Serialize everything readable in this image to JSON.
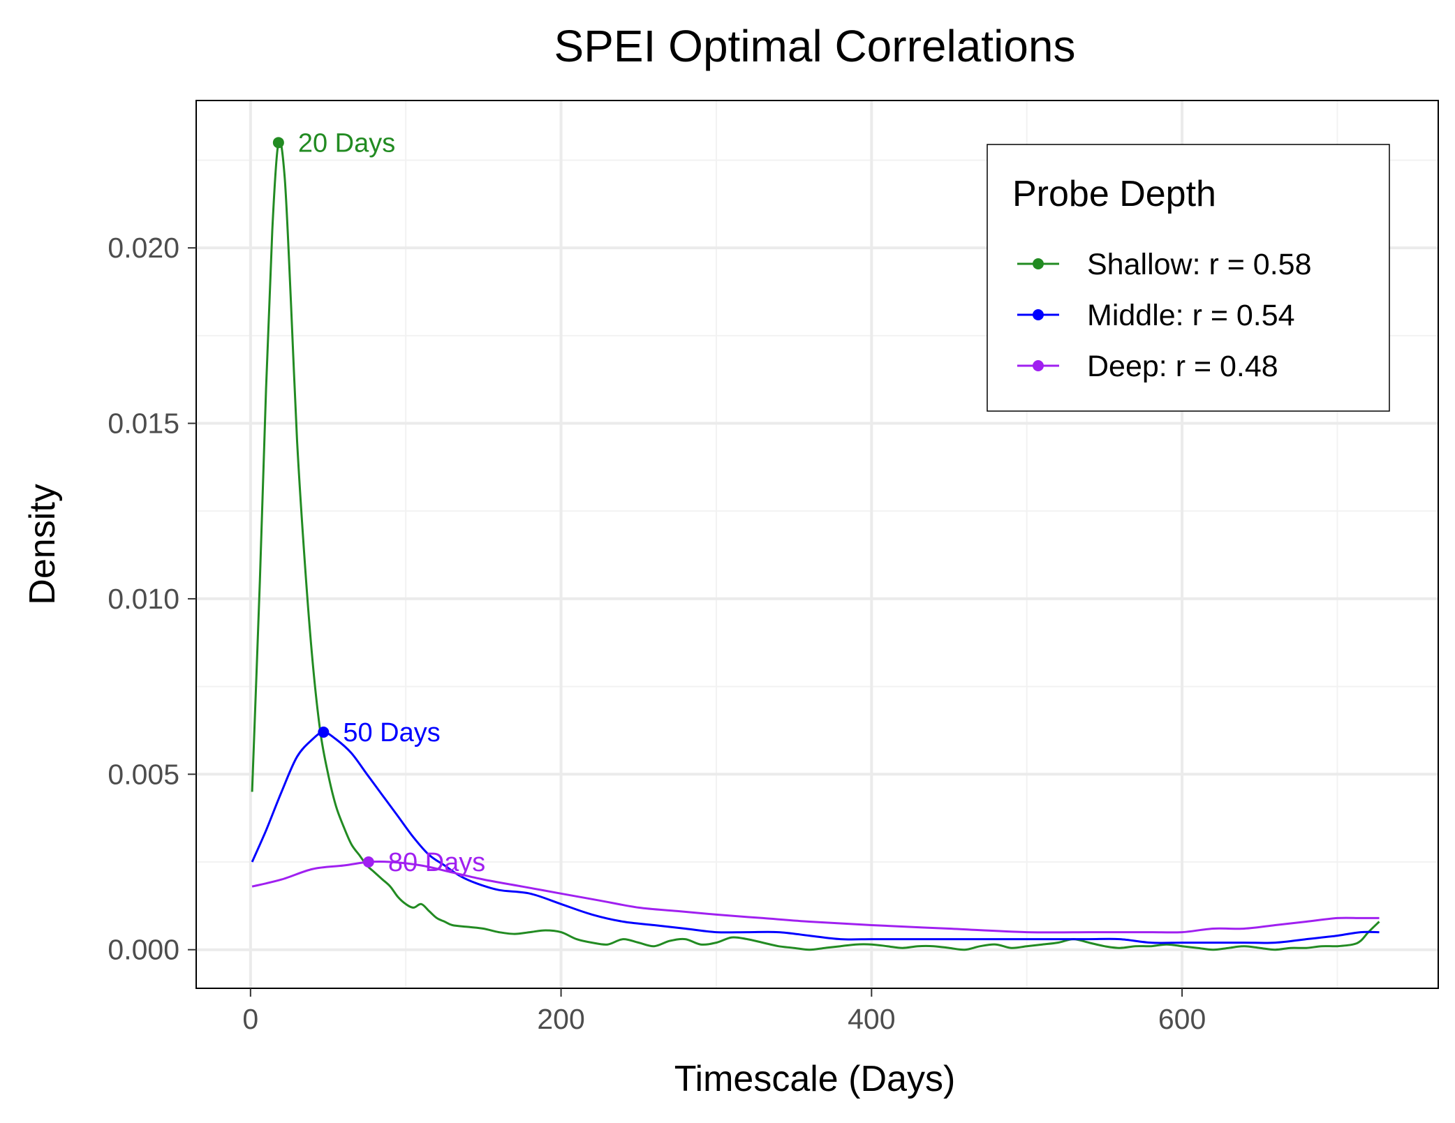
{
  "chart_data": {
    "type": "line",
    "title": "SPEI Optimal Correlations",
    "xlabel": "Timescale (Days)",
    "ylabel": "Density",
    "xlim": [
      -35,
      765
    ],
    "ylim": [
      -0.0011,
      0.0242
    ],
    "xticks": [
      0,
      200,
      400,
      600
    ],
    "xtick_labels": [
      "0",
      "200",
      "400",
      "600"
    ],
    "yticks": [
      0,
      0.005,
      0.01,
      0.015,
      0.02
    ],
    "ytick_labels": [
      "0.000",
      "0.005",
      "0.010",
      "0.015",
      "0.020"
    ],
    "grid": true,
    "legend": {
      "title": "Probe Depth",
      "position": "top-right"
    },
    "series": [
      {
        "name": "Shallow: r = 0.58",
        "color": "#228B22",
        "peak": {
          "x": 18,
          "y": 0.023,
          "label": "20 Days"
        },
        "x": [
          1,
          6,
          10,
          14,
          18,
          22,
          26,
          30,
          35,
          40,
          45,
          50,
          55,
          60,
          65,
          70,
          75,
          80,
          85,
          90,
          95,
          100,
          105,
          110,
          115,
          120,
          125,
          130,
          140,
          150,
          160,
          170,
          180,
          190,
          200,
          210,
          220,
          230,
          240,
          250,
          260,
          270,
          280,
          290,
          300,
          310,
          320,
          330,
          340,
          350,
          360,
          370,
          380,
          390,
          400,
          410,
          420,
          430,
          440,
          450,
          460,
          470,
          480,
          490,
          500,
          510,
          520,
          530,
          540,
          550,
          560,
          570,
          580,
          590,
          600,
          610,
          620,
          630,
          640,
          650,
          660,
          670,
          680,
          690,
          700,
          710,
          715,
          720,
          727
        ],
        "y": [
          0.0045,
          0.0105,
          0.016,
          0.0205,
          0.023,
          0.022,
          0.0185,
          0.0145,
          0.011,
          0.0082,
          0.0062,
          0.005,
          0.0041,
          0.0035,
          0.003,
          0.0027,
          0.0024,
          0.0022,
          0.002,
          0.0018,
          0.0015,
          0.0013,
          0.0012,
          0.0013,
          0.0011,
          0.0009,
          0.0008,
          0.0007,
          0.00065,
          0.0006,
          0.0005,
          0.00045,
          0.0005,
          0.00055,
          0.0005,
          0.0003,
          0.0002,
          0.00015,
          0.0003,
          0.0002,
          0.0001,
          0.00025,
          0.0003,
          0.00015,
          0.0002,
          0.00035,
          0.0003,
          0.0002,
          0.0001,
          5e-05,
          0.0,
          5e-05,
          0.0001,
          0.00015,
          0.00015,
          0.0001,
          5e-05,
          0.0001,
          0.0001,
          5e-05,
          0.0,
          0.0001,
          0.00015,
          5e-05,
          0.0001,
          0.00015,
          0.0002,
          0.0003,
          0.0002,
          0.0001,
          5e-05,
          0.0001,
          0.0001,
          0.00015,
          0.0001,
          5e-05,
          0.0,
          5e-05,
          0.0001,
          5e-05,
          0.0,
          5e-05,
          5e-05,
          0.0001,
          0.0001,
          0.00015,
          0.00025,
          0.0005,
          0.0008
        ]
      },
      {
        "name": "Middle: r = 0.54",
        "color": "#0000FF",
        "peak": {
          "x": 47,
          "y": 0.0062,
          "label": "50 Days"
        },
        "x": [
          1,
          10,
          20,
          30,
          40,
          47,
          55,
          65,
          75,
          85,
          95,
          105,
          115,
          125,
          135,
          145,
          160,
          180,
          200,
          220,
          240,
          260,
          280,
          300,
          320,
          340,
          360,
          380,
          400,
          420,
          440,
          460,
          480,
          500,
          520,
          540,
          560,
          580,
          600,
          620,
          640,
          660,
          680,
          700,
          715,
          727
        ],
        "y": [
          0.0025,
          0.0034,
          0.0045,
          0.0055,
          0.006,
          0.0062,
          0.006,
          0.0056,
          0.005,
          0.0044,
          0.0038,
          0.0032,
          0.0027,
          0.0024,
          0.0021,
          0.0019,
          0.0017,
          0.0016,
          0.0013,
          0.001,
          0.0008,
          0.0007,
          0.0006,
          0.0005,
          0.0005,
          0.0005,
          0.0004,
          0.0003,
          0.0003,
          0.0003,
          0.0003,
          0.0003,
          0.0003,
          0.0003,
          0.0003,
          0.0003,
          0.0003,
          0.0002,
          0.0002,
          0.0002,
          0.0002,
          0.0002,
          0.0003,
          0.0004,
          0.0005,
          0.0005
        ]
      },
      {
        "name": "Deep: r = 0.48",
        "color": "#A020F0",
        "peak": {
          "x": 76,
          "y": 0.0025,
          "label": "80 Days"
        },
        "x": [
          1,
          20,
          40,
          60,
          76,
          90,
          110,
          130,
          150,
          175,
          200,
          225,
          250,
          275,
          300,
          330,
          360,
          400,
          450,
          500,
          540,
          560,
          580,
          600,
          620,
          640,
          660,
          680,
          700,
          715,
          727
        ],
        "y": [
          0.0018,
          0.002,
          0.0023,
          0.0024,
          0.0025,
          0.0025,
          0.0024,
          0.0022,
          0.002,
          0.0018,
          0.0016,
          0.0014,
          0.0012,
          0.0011,
          0.001,
          0.0009,
          0.0008,
          0.0007,
          0.0006,
          0.0005,
          0.0005,
          0.0005,
          0.0005,
          0.0005,
          0.0006,
          0.0006,
          0.0007,
          0.0008,
          0.0009,
          0.0009,
          0.0009
        ]
      }
    ]
  }
}
